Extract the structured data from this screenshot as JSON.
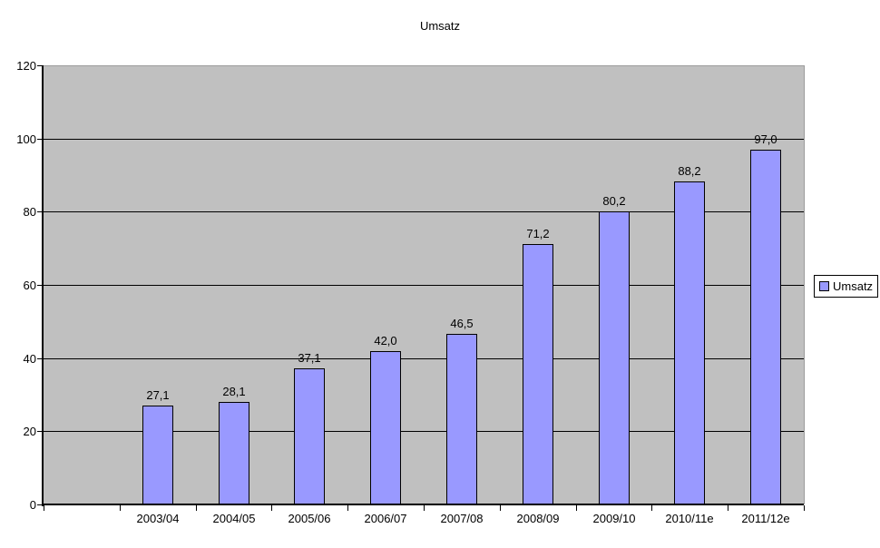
{
  "chart_data": {
    "type": "bar",
    "title": "Umsatz",
    "categories": [
      "2003/04",
      "2004/05",
      "2005/06",
      "2006/07",
      "2007/08",
      "2008/09",
      "2009/10",
      "2010/11e",
      "2011/12e"
    ],
    "series": [
      {
        "name": "Umsatz",
        "values": [
          27.1,
          28.1,
          37.1,
          42.0,
          46.5,
          71.2,
          80.2,
          88.2,
          97.0
        ],
        "value_labels": [
          "27,1",
          "28,1",
          "37,1",
          "42,0",
          "46,5",
          "71,2",
          "80,2",
          "88,2",
          "97,0"
        ]
      }
    ],
    "xlabel": "",
    "ylabel": "",
    "ylim": [
      0,
      120
    ],
    "yticks": [
      0,
      20,
      40,
      60,
      80,
      100,
      120
    ],
    "grid": "horizontal",
    "legend": {
      "position": "right",
      "entries": [
        "Umsatz"
      ]
    },
    "colors": {
      "bar_fill": "#9999ff",
      "bar_border": "#000000",
      "plot_background": "#c0c0c0",
      "gridline": "#000000",
      "plot_border": "#9b9b9b",
      "background": "#ffffff",
      "text": "#000000"
    },
    "layout_hints": {
      "slot_count": 10,
      "bars_start_slot": 1,
      "data_labels_above_bars": true,
      "decimal_separator": ","
    }
  }
}
